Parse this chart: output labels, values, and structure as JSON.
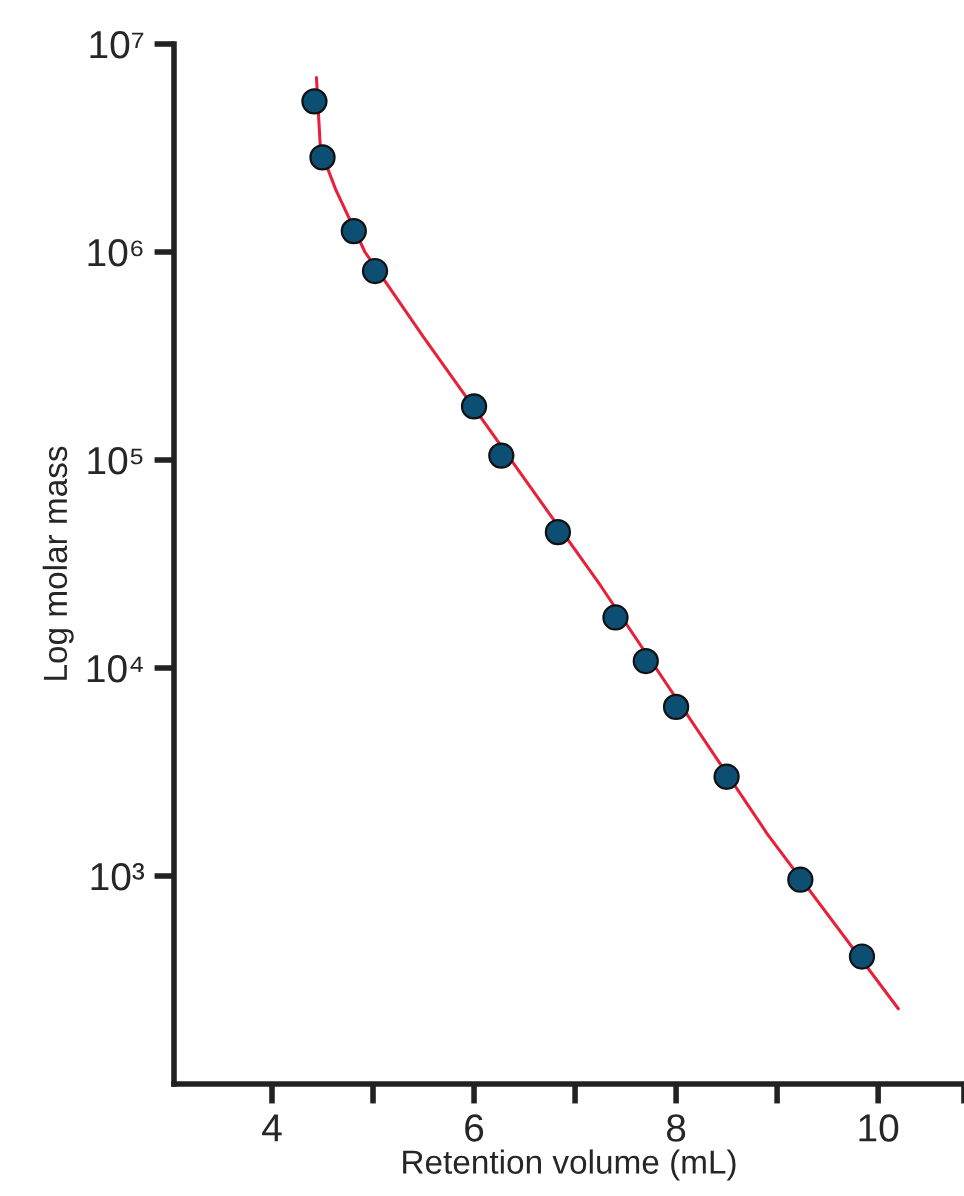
{
  "chart_data": {
    "type": "scatter",
    "xlabel": "Retention volume (mL)",
    "ylabel": "Log molar mass",
    "log": "y",
    "grid": false,
    "legend": false,
    "xlim": [
      3.03,
      10.85
    ],
    "ylim": [
      100,
      10000000
    ],
    "xticks": [
      4,
      {
        "value": 5,
        "label": null
      },
      6,
      {
        "value": 7,
        "label": null
      },
      8,
      {
        "value": 9,
        "label": null
      },
      10,
      {
        "value": 10.85,
        "label": null
      }
    ],
    "yticks": [
      {
        "value": 1000,
        "label": "10³"
      },
      {
        "value": 10000,
        "label": "10⁴"
      },
      {
        "value": 100000,
        "label": "10⁵"
      },
      {
        "value": 1000000,
        "label": "10⁶"
      },
      {
        "value": 10000000,
        "label": "10⁷"
      }
    ],
    "series": [
      {
        "type": "line",
        "color": "#e8203a",
        "line_style": "solid",
        "marker": "none",
        "x": [
          4.44,
          4.48,
          4.63,
          4.92,
          5.5,
          7.25,
          8.9,
          10.2
        ],
        "values": [
          6900000,
          3100000,
          2000000,
          1000000,
          390000,
          25000,
          1600,
          230
        ]
      },
      {
        "color": "#0d4f73",
        "marker": "circle",
        "x": [
          4.42,
          4.5,
          4.81,
          5.02,
          6.0,
          6.27,
          6.83,
          7.4,
          7.7,
          8.0,
          8.5,
          9.23,
          9.84
        ],
        "values": [
          5300000,
          2850000,
          1260000,
          810000,
          181000,
          105000,
          45000,
          17500,
          10800,
          6500,
          3000,
          960,
          410
        ]
      }
    ]
  }
}
